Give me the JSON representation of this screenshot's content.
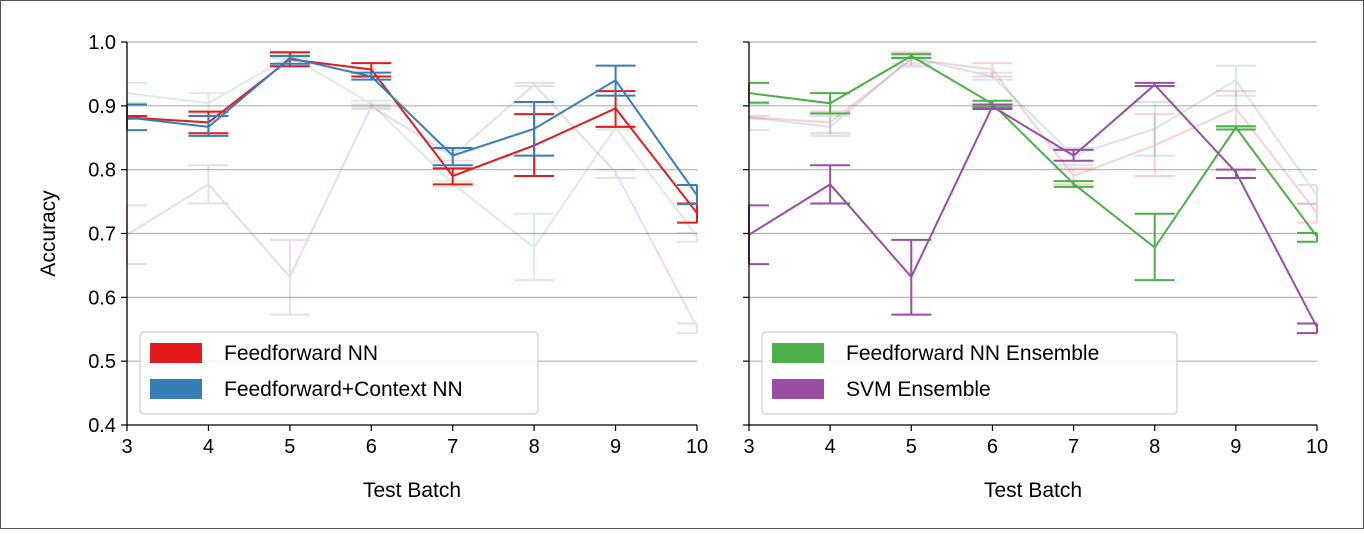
{
  "chart_data": [
    {
      "type": "line",
      "panel": "left",
      "xlabel": "Test Batch",
      "ylabel": "Accuracy",
      "xlim": [
        3,
        10
      ],
      "ylim": [
        0.4,
        1.0
      ],
      "xticks": [
        "3",
        "4",
        "5",
        "6",
        "7",
        "8",
        "9",
        "10"
      ],
      "yticks": [
        "0.4",
        "0.5",
        "0.6",
        "0.7",
        "0.8",
        "0.9",
        "1.0"
      ],
      "grid": "horizontal",
      "legend_position": "lower-left",
      "series": [
        {
          "name": "Feedforward NN",
          "color": "#e41a1c",
          "emphasis": true,
          "x": [
            3,
            4,
            5,
            6,
            7,
            8,
            9,
            10
          ],
          "y": [
            0.882,
            0.874,
            0.973,
            0.957,
            0.79,
            0.838,
            0.896,
            0.732
          ],
          "err_low": [
            0.88,
            0.857,
            0.962,
            0.946,
            0.777,
            0.79,
            0.867,
            0.717
          ],
          "err_high": [
            0.884,
            0.891,
            0.984,
            0.967,
            0.802,
            0.887,
            0.923,
            0.747
          ]
        },
        {
          "name": "Feedforward+Context NN",
          "color": "#377eb8",
          "emphasis": true,
          "x": [
            3,
            4,
            5,
            6,
            7,
            8,
            9,
            10
          ],
          "y": [
            0.882,
            0.867,
            0.975,
            0.946,
            0.822,
            0.864,
            0.94,
            0.76
          ],
          "err_low": [
            0.862,
            0.853,
            0.966,
            0.941,
            0.807,
            0.822,
            0.916,
            0.746
          ],
          "err_high": [
            0.902,
            0.884,
            0.978,
            0.952,
            0.834,
            0.906,
            0.963,
            0.776
          ]
        },
        {
          "name": "Feedforward NN Ensemble",
          "color": "#4daf4a",
          "emphasis": false,
          "x": [
            3,
            4,
            5,
            6,
            7,
            8,
            9,
            10
          ],
          "y": [
            0.92,
            0.904,
            0.978,
            0.903,
            0.778,
            0.678,
            0.866,
            0.695
          ],
          "err_low": [
            0.905,
            0.888,
            0.975,
            0.898,
            0.773,
            0.627,
            0.863,
            0.687
          ],
          "err_high": [
            0.936,
            0.92,
            0.981,
            0.908,
            0.782,
            0.731,
            0.868,
            0.701
          ]
        },
        {
          "name": "SVM Ensemble",
          "color": "#984ea3",
          "emphasis": false,
          "x": [
            3,
            4,
            5,
            6,
            7,
            8,
            9,
            10
          ],
          "y": [
            0.698,
            0.777,
            0.632,
            0.899,
            0.822,
            0.933,
            0.796,
            0.553
          ],
          "err_low": [
            0.652,
            0.747,
            0.573,
            0.895,
            0.814,
            0.931,
            0.787,
            0.544
          ],
          "err_high": [
            0.744,
            0.807,
            0.69,
            0.902,
            0.831,
            0.936,
            0.8,
            0.559
          ]
        }
      ],
      "legend": [
        "Feedforward NN",
        "Feedforward+Context NN"
      ]
    },
    {
      "type": "line",
      "panel": "right",
      "xlabel": "Test Batch",
      "ylabel": "",
      "xlim": [
        3,
        10
      ],
      "ylim": [
        0.4,
        1.0
      ],
      "xticks": [
        "3",
        "4",
        "5",
        "6",
        "7",
        "8",
        "9",
        "10"
      ],
      "yticks": [],
      "grid": "horizontal",
      "legend_position": "lower-left",
      "series": [
        {
          "name": "Feedforward NN",
          "color": "#e41a1c",
          "emphasis": false,
          "x": [
            3,
            4,
            5,
            6,
            7,
            8,
            9,
            10
          ],
          "y": [
            0.882,
            0.874,
            0.973,
            0.957,
            0.79,
            0.838,
            0.896,
            0.732
          ],
          "err_low": [
            0.88,
            0.857,
            0.962,
            0.946,
            0.777,
            0.79,
            0.867,
            0.717
          ],
          "err_high": [
            0.884,
            0.891,
            0.984,
            0.967,
            0.802,
            0.887,
            0.923,
            0.747
          ]
        },
        {
          "name": "Feedforward+Context NN",
          "color": "#377eb8",
          "emphasis": false,
          "x": [
            3,
            4,
            5,
            6,
            7,
            8,
            9,
            10
          ],
          "y": [
            0.882,
            0.867,
            0.975,
            0.946,
            0.822,
            0.864,
            0.94,
            0.76
          ],
          "err_low": [
            0.862,
            0.853,
            0.966,
            0.941,
            0.807,
            0.822,
            0.916,
            0.746
          ],
          "err_high": [
            0.902,
            0.884,
            0.978,
            0.952,
            0.834,
            0.906,
            0.963,
            0.776
          ]
        },
        {
          "name": "Feedforward NN Ensemble",
          "color": "#4daf4a",
          "emphasis": true,
          "x": [
            3,
            4,
            5,
            6,
            7,
            8,
            9,
            10
          ],
          "y": [
            0.92,
            0.904,
            0.978,
            0.903,
            0.778,
            0.678,
            0.866,
            0.695
          ],
          "err_low": [
            0.905,
            0.888,
            0.975,
            0.898,
            0.773,
            0.627,
            0.863,
            0.687
          ],
          "err_high": [
            0.936,
            0.92,
            0.981,
            0.908,
            0.782,
            0.731,
            0.868,
            0.701
          ]
        },
        {
          "name": "SVM Ensemble",
          "color": "#984ea3",
          "emphasis": true,
          "x": [
            3,
            4,
            5,
            6,
            7,
            8,
            9,
            10
          ],
          "y": [
            0.698,
            0.777,
            0.632,
            0.899,
            0.822,
            0.933,
            0.796,
            0.553
          ],
          "err_low": [
            0.652,
            0.747,
            0.573,
            0.895,
            0.814,
            0.931,
            0.787,
            0.544
          ],
          "err_high": [
            0.744,
            0.807,
            0.69,
            0.902,
            0.831,
            0.936,
            0.8,
            0.559
          ]
        }
      ],
      "legend": [
        "Feedforward NN Ensemble",
        "SVM Ensemble"
      ]
    }
  ]
}
